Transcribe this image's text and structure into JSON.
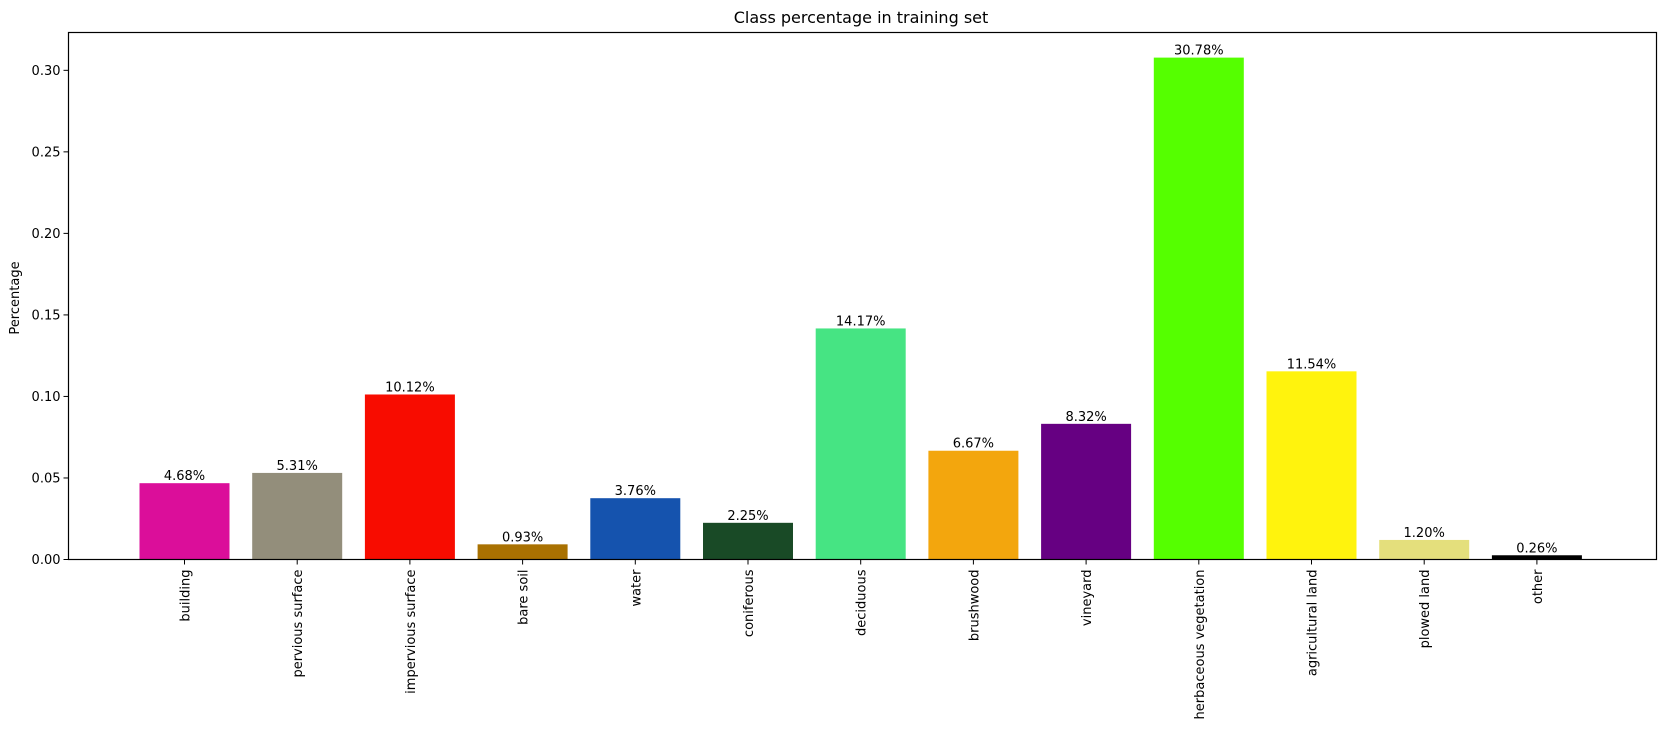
{
  "chart_data": {
    "type": "bar",
    "title": "Class percentage in training set",
    "xlabel": "",
    "ylabel": "Percentage",
    "ylim": [
      0,
      0.3232
    ],
    "yticks": [
      0.0,
      0.05,
      0.1,
      0.15,
      0.2,
      0.25,
      0.3
    ],
    "ytick_labels": [
      "0.00",
      "0.05",
      "0.10",
      "0.15",
      "0.20",
      "0.25",
      "0.30"
    ],
    "categories": [
      "building",
      "pervious surface",
      "impervious surface",
      "bare soil",
      "water",
      "coniferous",
      "deciduous",
      "brushwood",
      "vineyard",
      "herbaceous vegetation",
      "agricultural land",
      "plowed land",
      "other"
    ],
    "values": [
      0.0468,
      0.0531,
      0.1012,
      0.0093,
      0.0376,
      0.0225,
      0.1417,
      0.0667,
      0.0832,
      0.3078,
      0.1154,
      0.012,
      0.0026
    ],
    "data_labels": [
      "4.68%",
      "5.31%",
      "10.12%",
      "0.93%",
      "3.76%",
      "2.25%",
      "14.17%",
      "6.67%",
      "8.32%",
      "30.78%",
      "11.54%",
      "1.20%",
      "0.26%"
    ],
    "colors": [
      "#db0e9a",
      "#938e7b",
      "#f80c00",
      "#a97101",
      "#1553ae",
      "#194a26",
      "#46e483",
      "#f3a60d",
      "#660082",
      "#55ff00",
      "#fff30d",
      "#e4df7c",
      "#000000"
    ],
    "grid": false,
    "legend": "none"
  }
}
